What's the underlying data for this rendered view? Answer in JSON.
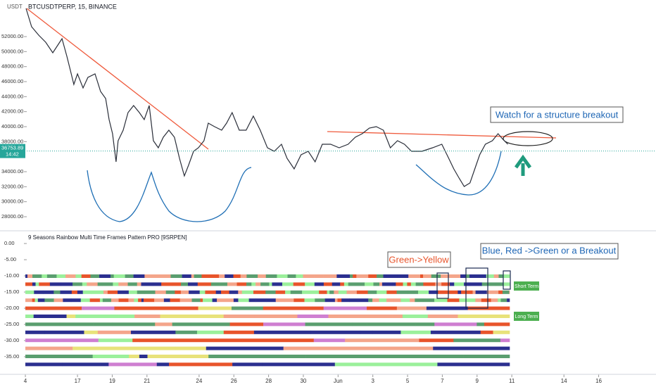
{
  "chart_data": {
    "type": "line",
    "title": "BTCUSDTPERP, 15, BINANCE",
    "y_unit": "USDT",
    "color": "#2a2e39",
    "x": [
      14.04,
      14.36,
      14.77,
      15.17,
      15.58,
      16.11,
      16.39,
      16.59,
      16.79,
      17.0,
      17.32,
      17.6,
      18.01,
      18.33,
      18.62,
      18.82,
      19.02,
      19.22,
      19.34,
      19.63,
      19.91,
      20.23,
      20.56,
      20.84,
      21.13,
      21.37,
      21.65,
      21.94,
      22.26,
      22.58,
      22.87,
      23.15,
      23.39,
      23.68,
      23.96,
      24.28,
      24.53,
      24.89,
      25.3,
      25.58,
      25.9,
      26.31,
      26.71,
      27.12,
      27.52,
      27.93,
      28.33,
      28.74,
      29.06,
      29.47,
      29.87,
      30.28,
      30.68,
      31.09,
      31.57,
      32.06,
      32.58,
      32.99,
      33.39,
      33.8,
      34.2,
      34.61,
      35.01,
      35.42,
      35.82,
      36.23,
      36.83,
      37.44,
      37.97,
      38.37,
      38.66,
      38.94,
      39.26,
      39.59,
      39.87,
      40.15,
      40.48,
      40.88,
      41.21,
      41.49,
      41.77
    ],
    "values": [
      55750,
      53313,
      52188,
      51250,
      49844,
      51719,
      49375,
      47500,
      45625,
      47031,
      45156,
      46563,
      47031,
      44688,
      43750,
      40938,
      39063,
      35313,
      38125,
      39531,
      41875,
      42813,
      41875,
      40938,
      42813,
      38125,
      37188,
      38594,
      39531,
      38594,
      35781,
      33438,
      34844,
      36719,
      37188,
      38125,
      40469,
      40000,
      39531,
      40469,
      41875,
      39531,
      39531,
      41406,
      39531,
      37188,
      36719,
      37656,
      35781,
      34375,
      36250,
      36719,
      35313,
      37656,
      37656,
      37188,
      37656,
      38594,
      39063,
      39813,
      40000,
      39531,
      37188,
      38125,
      37656,
      36719,
      36719,
      37188,
      37656,
      35781,
      34375,
      33250,
      32031,
      32500,
      34375,
      36250,
      37656,
      38125,
      39063,
      38313,
      37656
    ],
    "xlim": [
      12.54,
      50.3
    ],
    "xticks": [
      {
        "value": 14,
        "label": "4"
      },
      17,
      19,
      21,
      24,
      26,
      28,
      30,
      {
        "value": 32,
        "label": "Jun"
      },
      {
        "value": 34,
        "label": "3"
      },
      {
        "value": 36,
        "label": "5"
      },
      {
        "value": 38,
        "label": "7"
      },
      {
        "value": 40,
        "label": "9"
      },
      {
        "value": 42,
        "label": "11"
      },
      {
        "value": 45,
        "label": "14"
      },
      {
        "value": 47,
        "label": "16"
      }
    ],
    "ylim": [
      26406,
      56875
    ],
    "yticks": [
      {
        "value": 28000,
        "label": "28000.00"
      },
      {
        "value": 30000,
        "label": "30000.00"
      },
      {
        "value": 32000,
        "label": "32000.00"
      },
      {
        "value": 34000,
        "label": "34000.00"
      },
      {
        "value": 38000,
        "label": "38000.00"
      },
      {
        "value": 40000,
        "label": "40000.00"
      },
      {
        "value": 42000,
        "label": "42000.00"
      },
      {
        "value": 44000,
        "label": "44000.00"
      },
      {
        "value": 46000,
        "label": "46000.00"
      },
      {
        "value": 48000,
        "label": "48000.00"
      },
      {
        "value": 50000,
        "label": "50000.00"
      },
      {
        "value": 52000,
        "label": "52000.00"
      }
    ],
    "last_price": {
      "value": 36753.89,
      "label": "36753.89"
    },
    "countdown": "14:42",
    "annotations": [
      "Watch for a structure breakout",
      "Green->Yellow",
      "Blue, Red ->Green or a Breakout"
    ]
  },
  "indicator": {
    "title": "9 Seasons Rainbow Multi Time Frames Pattern PRO [9SRPEN]",
    "ylim": [
      -40,
      3.5
    ],
    "yticks": [
      {
        "value": 0,
        "label": "0.00"
      },
      {
        "value": -5,
        "label": "-5.00"
      },
      {
        "value": -10,
        "label": "-10.00"
      },
      {
        "value": -15,
        "label": "-15.00"
      },
      {
        "value": -20,
        "label": "-20.00"
      },
      {
        "value": -25,
        "label": "-25.00"
      },
      {
        "value": -30,
        "label": "-30.00"
      },
      {
        "value": -35,
        "label": "-35.00"
      }
    ],
    "labels": [
      "Short Term",
      "Long Term"
    ]
  }
}
